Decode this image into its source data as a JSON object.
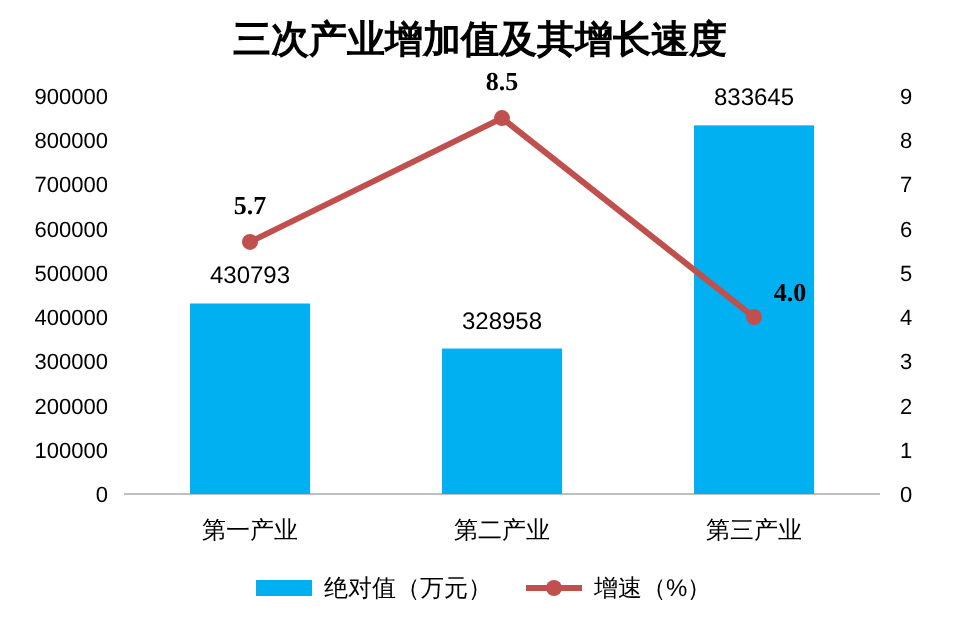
{
  "chart_data": {
    "type": "bar",
    "title": "三次产业增加值及其增长速度",
    "categories": [
      "第一产业",
      "第二产业",
      "第三产业"
    ],
    "series": [
      {
        "name": "绝对值（万元）",
        "color": "#00b0f0",
        "values": [
          430793,
          328958,
          833645
        ],
        "value_labels": [
          "430793",
          "328958",
          "833645"
        ]
      },
      {
        "name": "增速（%）",
        "type": "line",
        "axis": "y2",
        "color": "#c0504d",
        "marker": "circle",
        "values": [
          5.7,
          8.5,
          4.0
        ],
        "value_labels": [
          "5.7",
          "8.5",
          "4.0"
        ]
      }
    ],
    "ylim": [
      0,
      900000
    ],
    "yticks": [
      0,
      100000,
      200000,
      300000,
      400000,
      500000,
      600000,
      700000,
      800000,
      900000
    ],
    "y2lim": [
      0,
      9
    ],
    "y2ticks": [
      0,
      1,
      2,
      3,
      4,
      5,
      6,
      7,
      8,
      9
    ],
    "legend": "bottom",
    "grid": false
  }
}
